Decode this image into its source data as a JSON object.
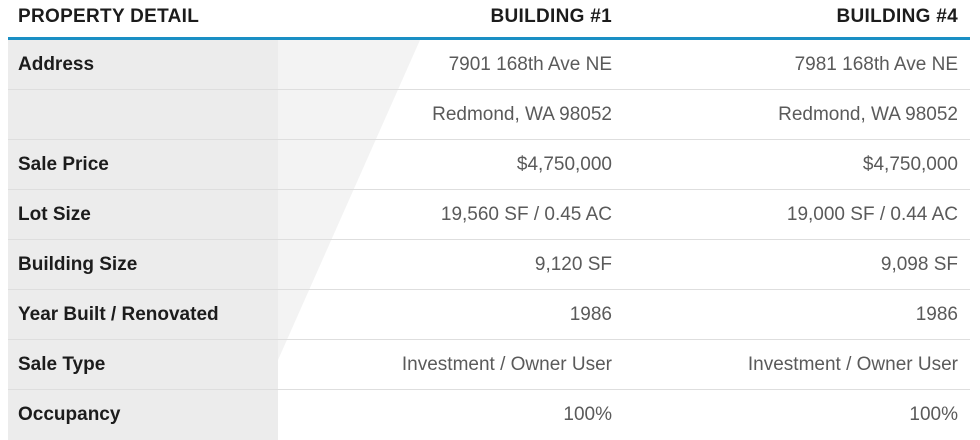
{
  "header": {
    "label": "PROPERTY DETAIL",
    "building1": "BUILDING #1",
    "building4": "BUILDING #4"
  },
  "rows": [
    {
      "label": "Address",
      "b1": "7901 168th Ave NE",
      "b4": "7981 168th Ave NE"
    },
    {
      "label": "",
      "b1": "Redmond, WA  98052",
      "b4": "Redmond, WA  98052"
    },
    {
      "label": "Sale Price",
      "b1": "$4,750,000",
      "b4": "$4,750,000"
    },
    {
      "label": "Lot Size",
      "b1": "19,560 SF / 0.45 AC",
      "b4": "19,000 SF / 0.44 AC"
    },
    {
      "label": "Building Size",
      "b1": "9,120 SF",
      "b4": "9,098 SF"
    },
    {
      "label": "Year Built / Renovated",
      "b1": "1986",
      "b4": "1986"
    },
    {
      "label": "Sale Type",
      "b1": "Investment / Owner User",
      "b4": "Investment / Owner User"
    },
    {
      "label": "Occupancy",
      "b1": "100%",
      "b4": "100%"
    }
  ],
  "colors": {
    "accent": "#1a8fc4",
    "label_bg": "#ececec"
  }
}
